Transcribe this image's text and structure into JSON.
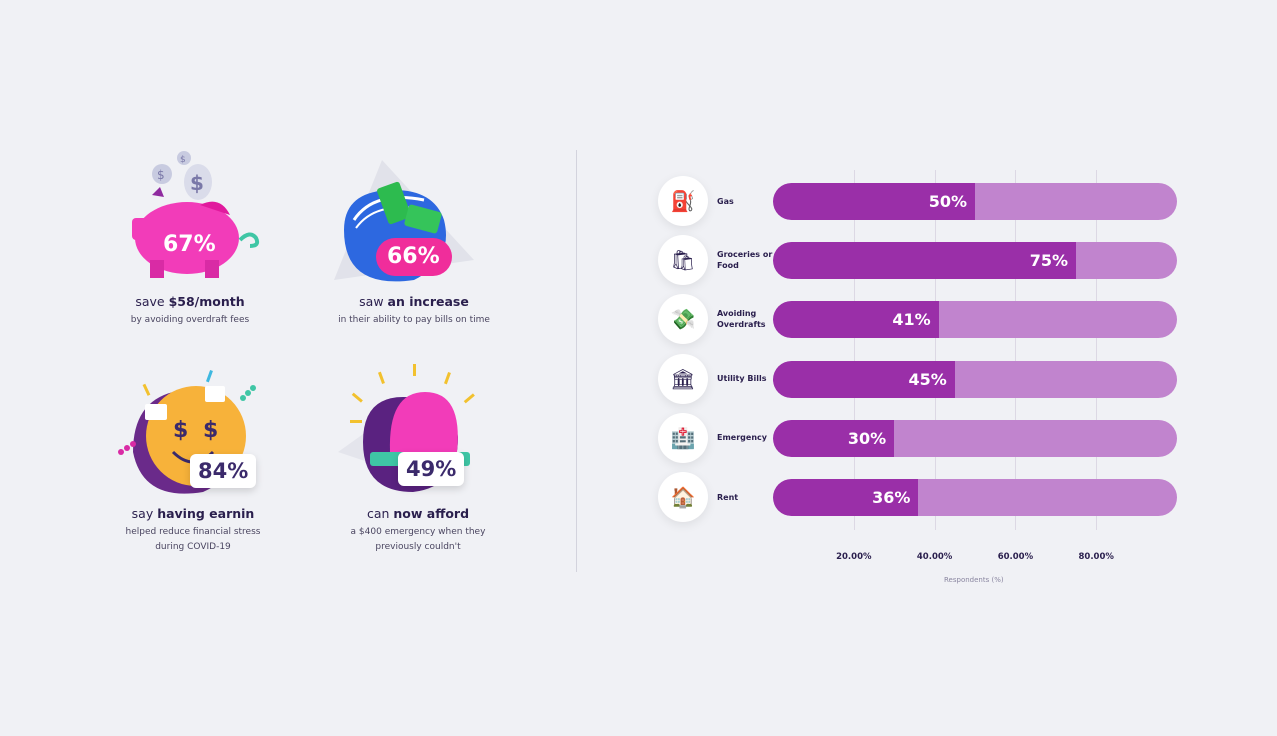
{
  "stats": [
    {
      "percent": "67%",
      "pre": "save ",
      "bold": "$58/month",
      "line2": "by avoiding overdraft fees",
      "line3": ""
    },
    {
      "percent": "66%",
      "pre": "saw ",
      "bold": "an increase",
      "line2": "in their ability to pay bills on time",
      "line3": ""
    },
    {
      "percent": "84%",
      "pre": "say ",
      "bold": "having earnin",
      "line2": "helped reduce financial stress",
      "line3": "during COVID-19"
    },
    {
      "percent": "49%",
      "pre": "can ",
      "bold": "now afford",
      "line2": "a $400 emergency when they",
      "line3": "previously couldn't"
    }
  ],
  "chart_data": {
    "type": "bar",
    "orientation": "horizontal",
    "categories": [
      "Gas",
      "Groceries or Food",
      "Avoiding Overdrafts",
      "Utility Bills",
      "Emergency",
      "Rent"
    ],
    "values": [
      50,
      75,
      41,
      45,
      30,
      36
    ],
    "value_labels": [
      "50%",
      "75%",
      "41%",
      "45%",
      "30%",
      "36%"
    ],
    "icons": [
      "gas-pump-icon",
      "shopping-bags-icon",
      "money-icon",
      "bank-icon",
      "hospital-icon",
      "house-icon"
    ],
    "xticks": [
      "20.00%",
      "40.00%",
      "60.00%",
      "80.00%"
    ],
    "xlabel": "Respondents (%)",
    "xlim": [
      0,
      100
    ],
    "colors": {
      "fill": "#9a2fa8",
      "track": "#c184ce"
    }
  }
}
